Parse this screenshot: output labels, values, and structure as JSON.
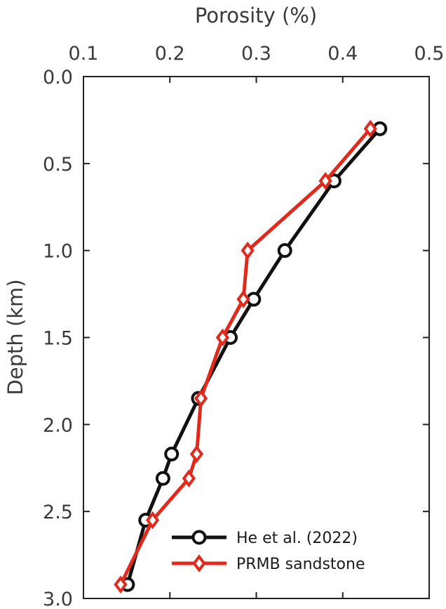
{
  "chart_data": {
    "type": "line",
    "xlabel": "Porosity (%)",
    "ylabel": "Depth (km)",
    "xlim": [
      0.1,
      0.5
    ],
    "ylim": [
      0.0,
      3.0
    ],
    "y_reversed": true,
    "x_axis_position": "top",
    "xticks": [
      0.1,
      0.2,
      0.3,
      0.4,
      0.5
    ],
    "xtick_labels": [
      "0.1",
      "0.2",
      "0.3",
      "0.4",
      "0.5"
    ],
    "yticks": [
      0.0,
      0.5,
      1.0,
      1.5,
      2.0,
      2.5,
      3.0
    ],
    "ytick_labels": [
      "0.0",
      "0.5",
      "1.0",
      "1.5",
      "2.0",
      "2.5",
      "3.0"
    ],
    "grid": false,
    "legend_position": "bottom-right",
    "series": [
      {
        "name": "He et al. (2022)",
        "color": "#111111",
        "marker": "circle",
        "x": [
          0.443,
          0.39,
          0.333,
          0.297,
          0.27,
          0.233,
          0.202,
          0.192,
          0.172,
          0.151
        ],
        "y": [
          0.3,
          0.6,
          1.0,
          1.28,
          1.5,
          1.85,
          2.17,
          2.31,
          2.55,
          2.92
        ]
      },
      {
        "name": "PRMB sandstone",
        "color": "#e02a1e",
        "marker": "diamond",
        "x": [
          0.432,
          0.38,
          0.29,
          0.285,
          0.261,
          0.236,
          0.231,
          0.222,
          0.18,
          0.143
        ],
        "y": [
          0.3,
          0.6,
          1.0,
          1.28,
          1.5,
          1.85,
          2.17,
          2.31,
          2.55,
          2.92
        ]
      }
    ]
  }
}
